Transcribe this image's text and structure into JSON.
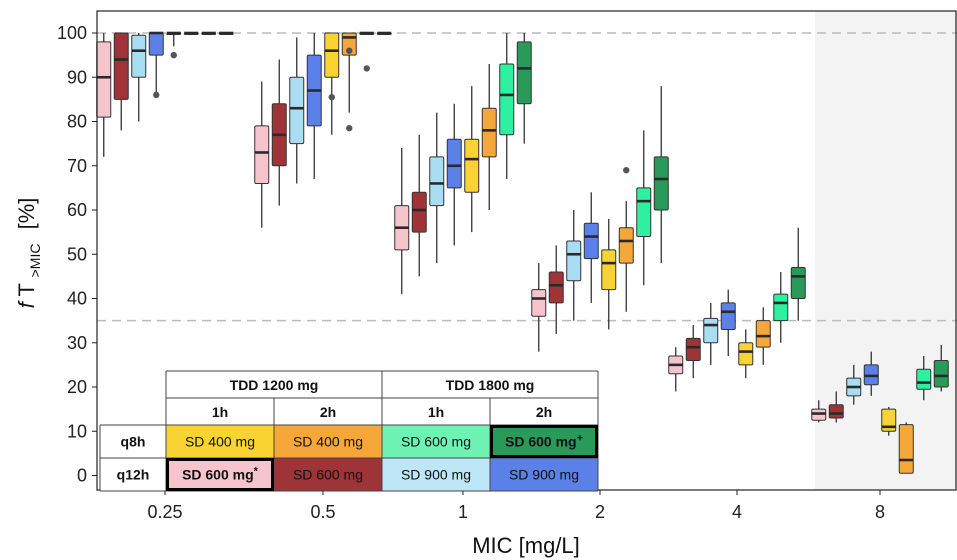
{
  "chart_data": {
    "type": "box",
    "xlabel": "MIC [mg/L]",
    "ylabel_italic": "f",
    "ylabel_main": "T",
    "ylabel_sub": ">MIC",
    "ylabel_unit": "[%]",
    "ylim": [
      -3,
      105
    ],
    "yticks": [
      0,
      10,
      20,
      30,
      40,
      50,
      60,
      70,
      80,
      90,
      100
    ],
    "categories": [
      "0.25",
      "0.5",
      "1",
      "2",
      "4",
      "8"
    ],
    "reference_lines": [
      100,
      35
    ],
    "shaded_category": "8",
    "series": [
      {
        "name": "q12h TDD 1200 mg 1h SD 600 mg*",
        "color": "#f6c4cc",
        "boxes": [
          {
            "min": 72,
            "q1": 81,
            "median": 90,
            "q3": 98,
            "max": 100,
            "outliers": []
          },
          {
            "min": 56,
            "q1": 66,
            "median": 73,
            "q3": 79,
            "max": 89,
            "outliers": []
          },
          {
            "min": 41,
            "q1": 51,
            "median": 56,
            "q3": 61,
            "max": 74,
            "outliers": []
          },
          {
            "min": 28,
            "q1": 36,
            "median": 40,
            "q3": 42,
            "max": 48,
            "outliers": []
          },
          {
            "min": 19,
            "q1": 23,
            "median": 25,
            "q3": 27,
            "max": 29,
            "outliers": []
          },
          {
            "min": 12,
            "q1": 12.5,
            "median": 14,
            "q3": 15,
            "max": 17,
            "outliers": []
          }
        ]
      },
      {
        "name": "q12h TDD 1200 mg 2h SD 600 mg",
        "color": "#9e3438",
        "boxes": [
          {
            "min": 78,
            "q1": 85,
            "median": 94,
            "q3": 100,
            "max": 100,
            "outliers": []
          },
          {
            "min": 61,
            "q1": 70,
            "median": 77,
            "q3": 84,
            "max": 94,
            "outliers": []
          },
          {
            "min": 45,
            "q1": 55,
            "median": 60,
            "q3": 64,
            "max": 77,
            "outliers": []
          },
          {
            "min": 32,
            "q1": 39,
            "median": 43,
            "q3": 46,
            "max": 52,
            "outliers": []
          },
          {
            "min": 22,
            "q1": 26,
            "median": 29,
            "q3": 31,
            "max": 34,
            "outliers": []
          },
          {
            "min": 12,
            "q1": 13,
            "median": 14,
            "q3": 16,
            "max": 19,
            "outliers": []
          }
        ]
      },
      {
        "name": "q12h TDD 1800 mg 1h SD 900 mg",
        "color": "#a8ddf2",
        "boxes": [
          {
            "min": 80,
            "q1": 90,
            "median": 96,
            "q3": 99.5,
            "max": 100,
            "outliers": []
          },
          {
            "min": 66,
            "q1": 75,
            "median": 83,
            "q3": 90,
            "max": 99,
            "outliers": []
          },
          {
            "min": 48,
            "q1": 61,
            "median": 66,
            "q3": 72,
            "max": 82,
            "outliers": []
          },
          {
            "min": 35,
            "q1": 44,
            "median": 50,
            "q3": 53,
            "max": 60,
            "outliers": []
          },
          {
            "min": 25,
            "q1": 30,
            "median": 34,
            "q3": 35.5,
            "max": 39,
            "outliers": []
          },
          {
            "min": 16,
            "q1": 18,
            "median": 20,
            "q3": 22,
            "max": 25,
            "outliers": []
          }
        ]
      },
      {
        "name": "q12h TDD 1800 mg 2h SD 900 mg",
        "color": "#5b80e8",
        "boxes": [
          {
            "min": 86,
            "q1": 95,
            "median": 100,
            "q3": 100,
            "max": 100,
            "outliers": [
              86
            ]
          },
          {
            "min": 67,
            "q1": 79,
            "median": 87,
            "q3": 95,
            "max": 100,
            "outliers": []
          },
          {
            "min": 52,
            "q1": 65,
            "median": 70,
            "q3": 76,
            "max": 84,
            "outliers": []
          },
          {
            "min": 39,
            "q1": 49,
            "median": 54,
            "q3": 57,
            "max": 64,
            "outliers": []
          },
          {
            "min": 27,
            "q1": 33,
            "median": 37,
            "q3": 39,
            "max": 42,
            "outliers": []
          },
          {
            "min": 18,
            "q1": 20.5,
            "median": 22.5,
            "q3": 25,
            "max": 28,
            "outliers": []
          }
        ]
      },
      {
        "name": "q8h TDD 1200 mg 1h SD 400 mg",
        "color": "#f9d331",
        "boxes": [
          {
            "min": 97,
            "q1": 100,
            "median": 100,
            "q3": 100,
            "max": 100,
            "outliers": [
              95
            ]
          },
          {
            "min": 77,
            "q1": 90,
            "median": 96,
            "q3": 100,
            "max": 100,
            "outliers": [
              85.5
            ]
          },
          {
            "min": 55,
            "q1": 64,
            "median": 71.5,
            "q3": 76,
            "max": 88,
            "outliers": []
          },
          {
            "min": 33,
            "q1": 42,
            "median": 48,
            "q3": 51,
            "max": 58,
            "outliers": []
          },
          {
            "min": 22,
            "q1": 25,
            "median": 28,
            "q3": 30,
            "max": 33,
            "outliers": []
          },
          {
            "min": 9,
            "q1": 10,
            "median": 11,
            "q3": 15,
            "max": 15.5,
            "outliers": []
          }
        ]
      },
      {
        "name": "q8h TDD 1200 mg 2h SD 400 mg",
        "color": "#f6a73a",
        "boxes": [
          {
            "min": 100,
            "q1": 100,
            "median": 100,
            "q3": 100,
            "max": 100,
            "outliers": []
          },
          {
            "min": 82,
            "q1": 95,
            "median": 99,
            "q3": 100,
            "max": 100,
            "outliers": [
              96,
              78.5
            ]
          },
          {
            "min": 60,
            "q1": 72,
            "median": 78,
            "q3": 83,
            "max": 93,
            "outliers": []
          },
          {
            "min": 37,
            "q1": 48,
            "median": 53,
            "q3": 56,
            "max": 62,
            "outliers": [
              69
            ]
          },
          {
            "min": 25,
            "q1": 29,
            "median": 31.5,
            "q3": 35,
            "max": 38,
            "outliers": []
          },
          {
            "min": 0.5,
            "q1": 0.5,
            "median": 3.5,
            "q3": 11.5,
            "max": 12,
            "outliers": []
          }
        ]
      },
      {
        "name": "q8h TDD 1800 mg 1h SD 600 mg",
        "color": "#2ff0a0",
        "boxes": [
          {
            "min": 100,
            "q1": 100,
            "median": 100,
            "q3": 100,
            "max": 100,
            "outliers": []
          },
          {
            "min": 100,
            "q1": 100,
            "median": 100,
            "q3": 100,
            "max": 100,
            "outliers": [
              92
            ]
          },
          {
            "min": 67,
            "q1": 77,
            "median": 86,
            "q3": 93,
            "max": 100,
            "outliers": []
          },
          {
            "min": 43,
            "q1": 54,
            "median": 62,
            "q3": 65,
            "max": 78,
            "outliers": []
          },
          {
            "min": 30,
            "q1": 35,
            "median": 39,
            "q3": 41,
            "max": 46,
            "outliers": []
          },
          {
            "min": 17,
            "q1": 19.5,
            "median": 21,
            "q3": 24,
            "max": 27,
            "outliers": []
          }
        ]
      },
      {
        "name": "q8h TDD 1800 mg 2h SD 600 mg+",
        "color": "#299a5a",
        "boxes": [
          {
            "min": 100,
            "q1": 100,
            "median": 100,
            "q3": 100,
            "max": 100,
            "outliers": []
          },
          {
            "min": 100,
            "q1": 100,
            "median": 100,
            "q3": 100,
            "max": 100,
            "outliers": []
          },
          {
            "min": 75,
            "q1": 84,
            "median": 92,
            "q3": 98,
            "max": 100,
            "outliers": []
          },
          {
            "min": 48,
            "q1": 60,
            "median": 67,
            "q3": 72,
            "max": 88,
            "outliers": []
          },
          {
            "min": 35,
            "q1": 40,
            "median": 45,
            "q3": 47,
            "max": 56,
            "outliers": []
          },
          {
            "min": 19,
            "q1": 20,
            "median": 22.5,
            "q3": 26,
            "max": 29.5,
            "outliers": []
          }
        ]
      }
    ],
    "legend_table": {
      "group_headers": [
        "TDD 1200 mg",
        "TDD 1800 mg"
      ],
      "infusion_headers": [
        "1h",
        "2h",
        "1h",
        "2h"
      ],
      "rows": [
        {
          "label": "q8h",
          "cells": [
            {
              "text": "SD 400 mg",
              "color": "#f9d331",
              "text_color": "#111111",
              "highlight": false,
              "mark": ""
            },
            {
              "text": "SD 400 mg",
              "color": "#f6a73a",
              "text_color": "#111111",
              "highlight": false,
              "mark": ""
            },
            {
              "text": "SD 600 mg",
              "color": "#6ef3b5",
              "text_color": "#111111",
              "highlight": false,
              "mark": ""
            },
            {
              "text": "SD 600 mg",
              "color": "#299a5a",
              "text_color": "#111111",
              "highlight": true,
              "mark": "+"
            }
          ]
        },
        {
          "label": "q12h",
          "cells": [
            {
              "text": "SD 600 mg",
              "color": "#f6c4cc",
              "text_color": "#111111",
              "highlight": true,
              "mark": "*"
            },
            {
              "text": "SD 600 mg",
              "color": "#9e3438",
              "text_color": "#ffffff",
              "highlight": false,
              "mark": ""
            },
            {
              "text": "SD 900 mg",
              "color": "#bde6f6",
              "text_color": "#111111",
              "highlight": false,
              "mark": ""
            },
            {
              "text": "SD 900 mg",
              "color": "#5b80e8",
              "text_color": "#ffffff",
              "highlight": false,
              "mark": ""
            }
          ]
        }
      ]
    }
  }
}
